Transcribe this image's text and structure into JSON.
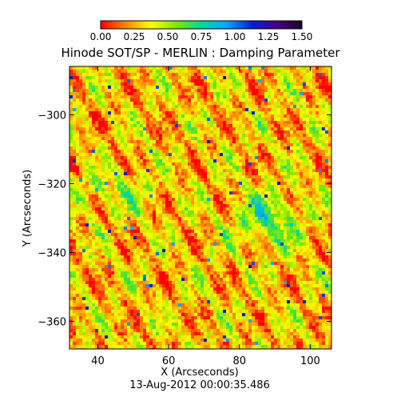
{
  "chart_data": {
    "type": "heatmap",
    "title": "Hinode SOT/SP - MERLIN : Damping Parameter",
    "xlabel": "X (Arcseconds)",
    "ylabel": "Y (Arcseconds)",
    "footer": "13-Aug-2012 00:00:35.486",
    "xlim": [
      32,
      106
    ],
    "ylim": [
      -368,
      -286
    ],
    "xticks": [
      40,
      60,
      80,
      100
    ],
    "yticks": [
      -300,
      -320,
      -340,
      -360
    ],
    "colorbar": {
      "range": [
        0.0,
        1.5
      ],
      "tick_labels": [
        "0.00",
        "0.25",
        "0.50",
        "0.75",
        "1.00",
        "1.25",
        "1.50"
      ],
      "colormap": [
        "#ff0000",
        "#ff8a00",
        "#ffff00",
        "#7fe800",
        "#00d89a",
        "#00a8ff",
        "#0022cc",
        "#4a0088",
        "#1a0020"
      ]
    },
    "grid": false
  }
}
